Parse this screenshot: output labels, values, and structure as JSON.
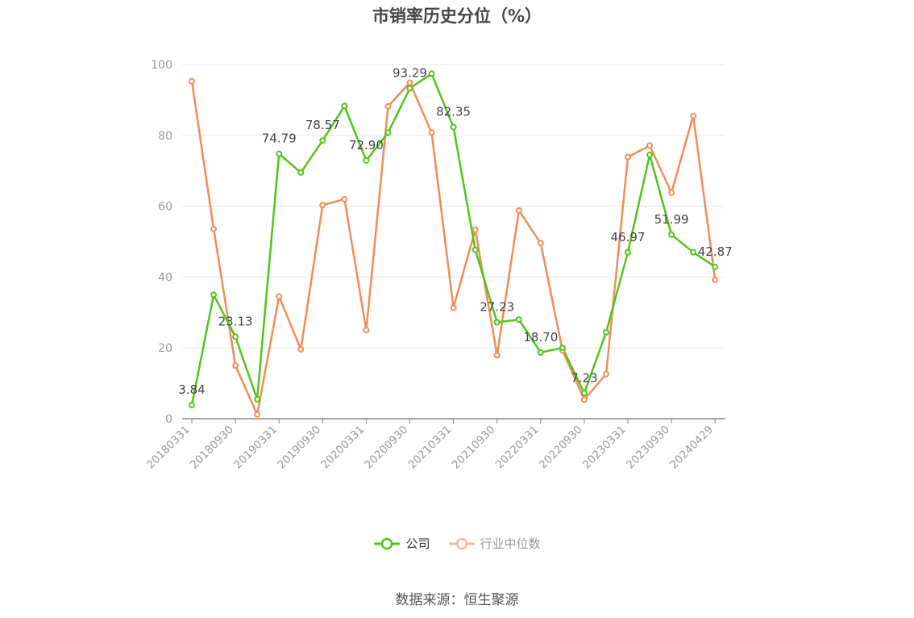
{
  "title": "市销率历史分位（%）",
  "source": "数据来源：恒生聚源",
  "colors": {
    "company": "#52c41a",
    "industry": "#f08c5a",
    "industry_legend": "#f9b9a0",
    "grid": "#e6e8ef",
    "axis": "#888888",
    "label": "#444444"
  },
  "legend": [
    {
      "name": "公司",
      "color": "#52c41a",
      "text_color": "#333333"
    },
    {
      "name": "行业中位数",
      "color": "#f9b9a0",
      "text_color": "#999999"
    }
  ],
  "chart_data": {
    "type": "line",
    "ylim": [
      0,
      100
    ],
    "y_ticks": [
      0,
      20,
      40,
      60,
      80,
      100
    ],
    "grid": true,
    "legend_position": "bottom",
    "x": [
      "20180331",
      "20180630",
      "20180930",
      "20181231",
      "20190331",
      "20190630",
      "20190930",
      "20191231",
      "20200331",
      "20200630",
      "20200930",
      "20201231",
      "20210331",
      "20210630",
      "20210930",
      "20211231",
      "20220331",
      "20220630",
      "20220930",
      "20221231",
      "20230331",
      "20230630",
      "20230930",
      "20231231",
      "20240429"
    ],
    "x_tick_labels": [
      "20180331",
      "20180930",
      "20190331",
      "20190930",
      "20200331",
      "20200930",
      "20210331",
      "20210930",
      "20220331",
      "20220930",
      "20230331",
      "20230930",
      "20240429"
    ],
    "series": [
      {
        "name": "公司",
        "values": [
          3.84,
          35.0,
          23.13,
          5.5,
          74.79,
          69.5,
          78.57,
          88.3,
          72.9,
          80.8,
          93.29,
          97.4,
          82.35,
          47.7,
          27.23,
          28.0,
          18.7,
          20.0,
          7.23,
          24.4,
          46.97,
          74.5,
          51.99,
          47.0,
          42.87
        ],
        "data_labels": {
          "0": "3.84",
          "2": "23.13",
          "4": "74.79",
          "6": "78.57",
          "8": "72.90",
          "10": "93.29",
          "12": "82.35",
          "14": "27.23",
          "16": "18.70",
          "18": "7.23",
          "20": "46.97",
          "22": "51.99",
          "24": "42.87"
        }
      },
      {
        "name": "行业中位数",
        "values": [
          95.3,
          53.6,
          15.0,
          1.2,
          34.5,
          19.6,
          60.3,
          62.0,
          25.0,
          88.2,
          94.9,
          80.8,
          31.3,
          53.4,
          17.9,
          58.8,
          49.6,
          19.3,
          5.4,
          12.6,
          73.9,
          77.1,
          63.8,
          85.5,
          39.2
        ]
      }
    ]
  }
}
